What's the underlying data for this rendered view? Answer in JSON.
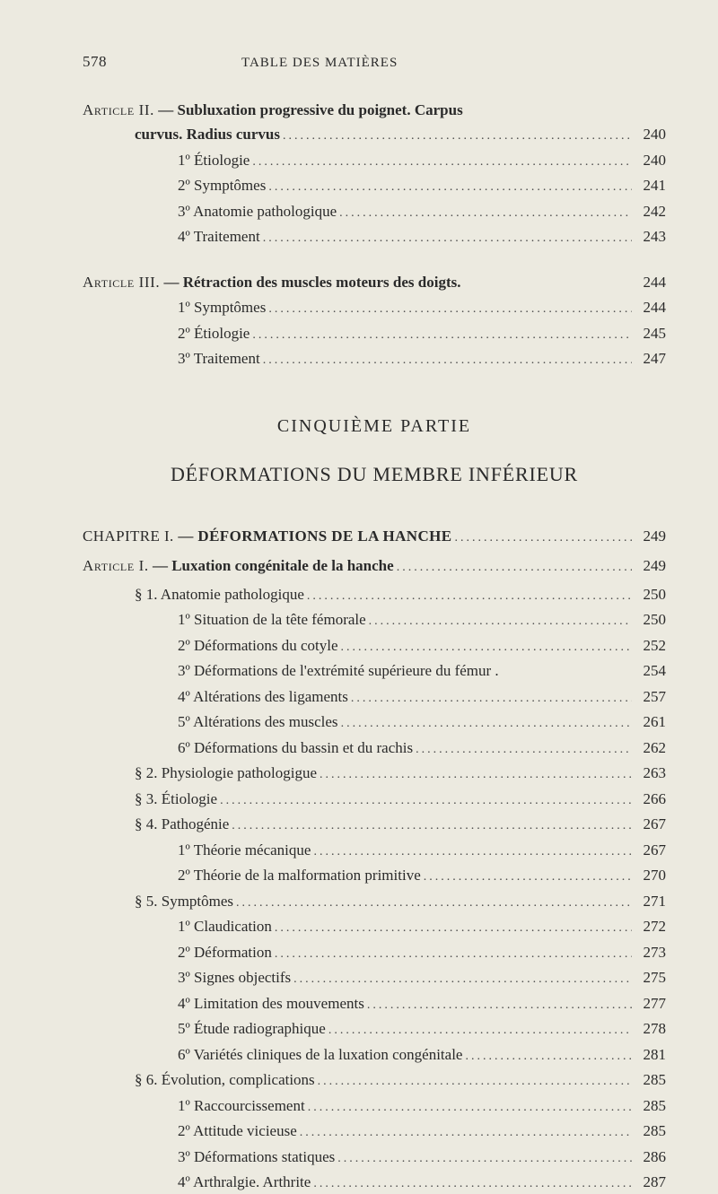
{
  "header": {
    "pageNumber": "578",
    "running": "TABLE DES MATIÈRES"
  },
  "part": {
    "title": "CINQUIÈME PARTIE",
    "subtitle": "DÉFORMATIONS DU MEMBRE INFÉRIEUR"
  },
  "blockA": {
    "lead": {
      "pre": "Article II.",
      "txt": " — Subluxation progressive du poignet. Carpus"
    },
    "leadCont": {
      "txt": "curvus. Radius curvus",
      "page": "240"
    },
    "items": [
      {
        "txt": "1º Étiologie",
        "page": "240"
      },
      {
        "txt": "2º Symptômes",
        "page": "241"
      },
      {
        "txt": "3º Anatomie pathologique",
        "page": "242"
      },
      {
        "txt": "4º Traitement",
        "page": "243"
      }
    ]
  },
  "blockB": {
    "lead": {
      "pre": "Article III.",
      "txt": " — Rétraction des muscles moteurs des doigts.",
      "page": "244"
    },
    "items": [
      {
        "txt": "1º Symptômes",
        "page": "244"
      },
      {
        "txt": "2º Étiologie",
        "page": "245"
      },
      {
        "txt": "3º Traitement",
        "page": "247"
      }
    ]
  },
  "blockC": {
    "chapter": {
      "pre": "CHAPITRE I.",
      "txt": " — DÉFORMATIONS DE LA HANCHE",
      "page": "249"
    },
    "article": {
      "pre": "Article I.",
      "txt": " — Luxation congénitale de la hanche",
      "page": "249"
    },
    "sections": [
      {
        "head": {
          "txt": "§ 1. Anatomie pathologique",
          "page": "250"
        },
        "items": [
          {
            "txt": "1º Situation de la tête fémorale",
            "page": "250"
          },
          {
            "txt": "2º Déformations du cotyle",
            "page": "252"
          },
          {
            "txt": "3º Déformations de l'extrémité supérieure du fémur .",
            "page": "254",
            "nodots": true
          },
          {
            "txt": "4º Altérations des ligaments",
            "page": "257"
          },
          {
            "txt": "5º Altérations des muscles",
            "page": "261"
          },
          {
            "txt": "6º Déformations du bassin et du rachis",
            "page": "262"
          }
        ]
      },
      {
        "head": {
          "txt": "§ 2. Physiologie pathologigue",
          "page": "263"
        }
      },
      {
        "head": {
          "txt": "§ 3. Étiologie",
          "page": "266"
        }
      },
      {
        "head": {
          "txt": "§ 4. Pathogénie",
          "page": "267"
        },
        "items": [
          {
            "txt": "1º Théorie mécanique",
            "page": "267"
          },
          {
            "txt": "2º Théorie de la malformation primitive",
            "page": "270"
          }
        ]
      },
      {
        "head": {
          "txt": "§ 5. Symptômes",
          "page": "271"
        },
        "items": [
          {
            "txt": "1º Claudication",
            "page": "272"
          },
          {
            "txt": "2º Déformation",
            "page": "273"
          },
          {
            "txt": "3º Signes objectifs",
            "page": "275"
          },
          {
            "txt": "4º Limitation des mouvements",
            "page": "277"
          },
          {
            "txt": "5º Étude radiographique",
            "page": "278"
          },
          {
            "txt": "6º Variétés cliniques de la luxation congénitale",
            "page": "281"
          }
        ]
      },
      {
        "head": {
          "txt": "§ 6. Évolution, complications",
          "page": "285"
        },
        "items": [
          {
            "txt": "1º Raccourcissement",
            "page": "285"
          },
          {
            "txt": "2º Attitude vicieuse",
            "page": "285"
          },
          {
            "txt": "3º Déformations statiques",
            "page": "286"
          },
          {
            "txt": "4º Arthralgie. Arthrite",
            "page": "287"
          }
        ]
      }
    ]
  }
}
